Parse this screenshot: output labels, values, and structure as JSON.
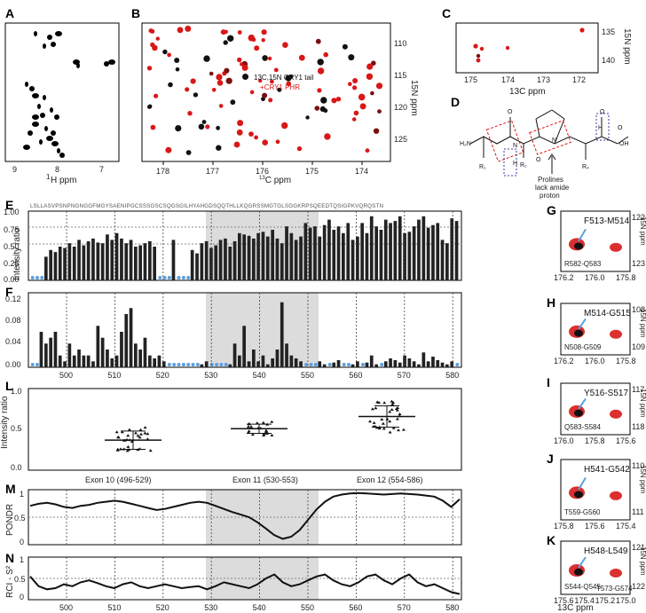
{
  "panels": {
    "A": {
      "label": "A",
      "xlabel_sup": "1",
      "xlabel": "H ppm",
      "xticks": [
        "9",
        "8",
        "7"
      ]
    },
    "B": {
      "label": "B",
      "xlabel_sup": "13",
      "xlabel": "C ppm",
      "xticks": [
        "178",
        "177",
        "176",
        "175",
        "174"
      ],
      "yticks": [
        "110",
        "115",
        "120",
        "125"
      ],
      "ylabel": "15N ppm",
      "legend_black": "13C,15N CRY1 tail",
      "legend_red": "+CRY1 PHR"
    },
    "C": {
      "label": "C",
      "xticks": [
        "175",
        "174",
        "173",
        "172"
      ],
      "yticks": [
        "135",
        "140"
      ],
      "xlabel": "13C ppm",
      "ylabel": "15N ppm"
    },
    "D": {
      "label": "D",
      "note_line1": "Prolines",
      "note_line2": "lack amide",
      "note_line3": "proton"
    },
    "E": {
      "label": "E",
      "ylabel": "Intensity ratio",
      "yticks": [
        "1.00",
        "0.75",
        "0.50",
        "0.25",
        "0.00"
      ],
      "sequence": "LSLLASVPSNPNGNGGFMGYSAENIPGCSSSGSCSQGSGILHYAHGDSQQTHLLKQGRSSMGTGLSGGKRPSQEEDTQSIGPKVQRQSTN"
    },
    "F": {
      "label": "F",
      "ylabel": "Δδ (ppm)",
      "yticks": [
        "0.12",
        "0.08",
        "0.04",
        "0.00"
      ]
    },
    "L": {
      "label": "L",
      "ylabel": "Intensity ratio",
      "yticks": [
        "1.0",
        "0.5",
        "0.0"
      ],
      "groups": [
        "Exon 10 (496-529)",
        "Exon 11 (530-553)",
        "Exon 12 (554-586)"
      ]
    },
    "M": {
      "label": "M",
      "ylabel": "PONDR",
      "yticks": [
        "1",
        "0.5",
        "0"
      ]
    },
    "N": {
      "label": "N",
      "ylabel": "RCI - S²",
      "yticks": [
        "1",
        "0.5",
        "0"
      ],
      "xticks": [
        "500",
        "510",
        "520",
        "530",
        "540",
        "550",
        "560",
        "570",
        "580"
      ]
    },
    "G": {
      "label": "G",
      "res1": "F513-M514",
      "res2": "R582-Q583",
      "xticks": [
        "176.2",
        "176.0",
        "175.8"
      ],
      "yticks": [
        "122",
        "123"
      ]
    },
    "H": {
      "label": "H",
      "res1": "M514-G515",
      "res2": "N508-G509",
      "xticks": [
        "176.2",
        "176.0",
        "175.8"
      ],
      "yticks": [
        "108",
        "109"
      ]
    },
    "I": {
      "label": "I",
      "res1": "Y516-S517",
      "res2": "Q583-S584",
      "xticks": [
        "176.0",
        "175.8",
        "175.6"
      ],
      "yticks": [
        "117",
        "118"
      ]
    },
    "J": {
      "label": "J",
      "res1": "H541-G542",
      "res2": "T559-G560",
      "xticks": [
        "175.8",
        "175.6",
        "175.4"
      ],
      "yticks": [
        "110",
        "111"
      ]
    },
    "K": {
      "label": "K",
      "res1": "H548-L549",
      "res2": "S544-Q545",
      "res3": "T573-G574",
      "xticks": [
        "175.6",
        "175.4",
        "175.2",
        "175.0"
      ],
      "yticks": [
        "121",
        "122"
      ]
    },
    "right_axis": "15N ppm",
    "bottom_axis": "13C ppm"
  },
  "colors": {
    "bound": "#d81818",
    "free": "#111111",
    "gray_region": "#dcdcdc",
    "marker": "#5aa0e0",
    "cross": "#d81818"
  }
}
